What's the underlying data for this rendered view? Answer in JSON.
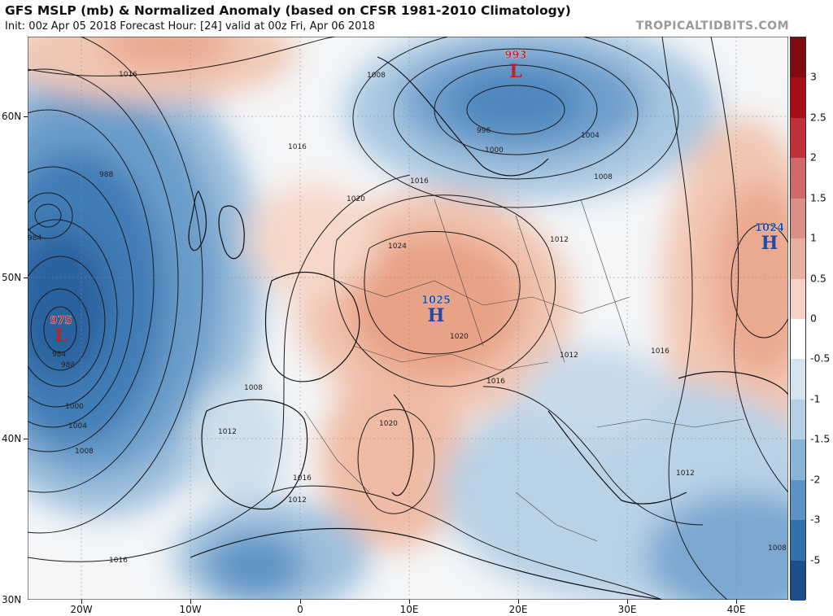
{
  "header": {
    "title": "GFS MSLP (mb) & Normalized Anomaly (based on CFSR 1981-2010 Climatology)",
    "subtitle": "Init: 00z Apr 05 2018   Forecast Hour: [24]   valid at 00z Fri, Apr 06 2018",
    "brand": "TROPICALTIDBITS.COM"
  },
  "axes": {
    "lat_ticks": [
      "60N",
      "50N",
      "40N",
      "30N"
    ],
    "lon_ticks": [
      "20W",
      "10W",
      "0",
      "10E",
      "20E",
      "30E",
      "40E"
    ]
  },
  "colorbar": {
    "labels": [
      "3",
      "2.5",
      "2",
      "1.5",
      "1",
      "0.5",
      "0",
      "-0.5",
      "-1",
      "-1.5",
      "-2",
      "-3",
      "-5"
    ],
    "colors": [
      "#a50f15",
      "#c0313a",
      "#cf6a68",
      "#dc8f84",
      "#e9b09f",
      "#f5d2c3",
      "#ffffff",
      "#d6e4ef",
      "#b5cfe3",
      "#88b4d6",
      "#5b93c3",
      "#316fad",
      "#1c4e8a"
    ]
  },
  "systems": [
    {
      "type": "L",
      "pressure": "993",
      "color": "#c0202a"
    },
    {
      "type": "L",
      "pressure": "975",
      "color": "#c0202a"
    },
    {
      "type": "H",
      "pressure": "1025",
      "color": "#1f4aa8"
    },
    {
      "type": "H",
      "pressure": "1024",
      "color": "#1f4aa8"
    }
  ],
  "isobar_labels": [
    "1016",
    "1008",
    "1016",
    "988",
    "984",
    "984",
    "988",
    "1000",
    "1004",
    "1008",
    "1020",
    "1024",
    "1016",
    "1008",
    "1012",
    "1016",
    "1012",
    "1020",
    "996",
    "1000",
    "1004",
    "1008",
    "1012",
    "1012",
    "1016",
    "1016",
    "1012",
    "1020",
    "1008",
    "1016"
  ]
}
